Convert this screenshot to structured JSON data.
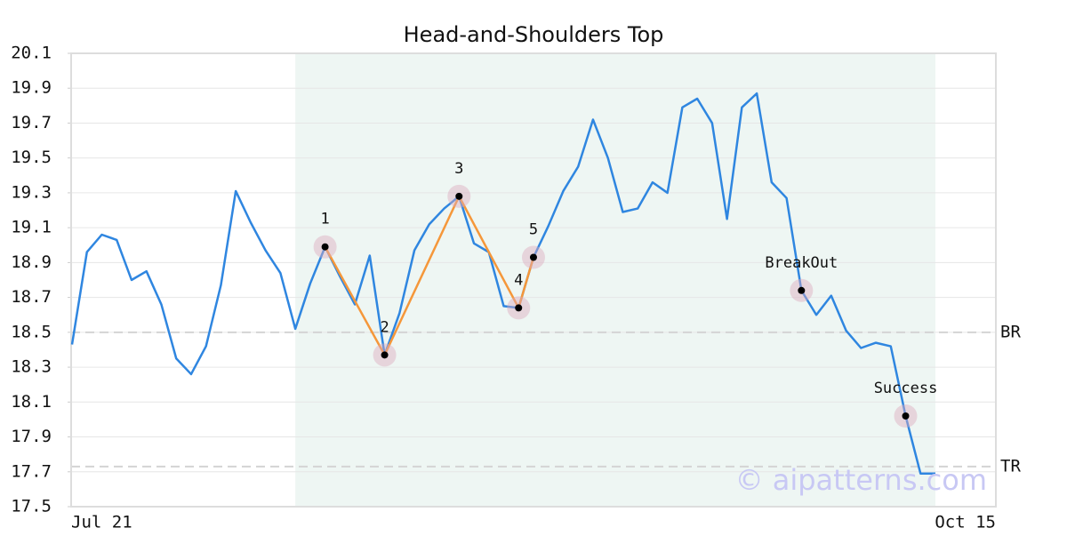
{
  "chart_data": {
    "type": "line",
    "title": "Head-and-Shoulders Top",
    "categories": [
      "Jul 21",
      null,
      null,
      null,
      null,
      null,
      null,
      null,
      null,
      null,
      null,
      null,
      null,
      null,
      null,
      null,
      null,
      null,
      null,
      null,
      null,
      null,
      null,
      null,
      null,
      null,
      null,
      null,
      null,
      null,
      null,
      null,
      null,
      null,
      null,
      null,
      null,
      null,
      null,
      null,
      null,
      null,
      null,
      null,
      null,
      null,
      null,
      null,
      null,
      null,
      null,
      null,
      null,
      null,
      null,
      null,
      null,
      null,
      "Oct 15"
    ],
    "series": [
      {
        "color": "#2f86e0",
        "values": [
          18.43,
          18.96,
          19.06,
          19.03,
          18.8,
          18.85,
          18.66,
          18.35,
          18.26,
          18.42,
          18.77,
          19.31,
          19.13,
          18.97,
          18.84,
          18.52,
          18.78,
          18.99,
          18.82,
          18.66,
          18.94,
          18.37,
          18.61,
          18.97,
          19.12,
          19.21,
          19.28,
          19.01,
          18.96,
          18.65,
          18.64,
          18.93,
          19.11,
          19.31,
          19.45,
          19.72,
          19.5,
          19.19,
          19.21,
          19.36,
          19.3,
          19.79,
          19.84,
          19.7,
          19.15,
          19.79,
          19.87,
          19.36,
          19.27,
          18.74,
          18.6,
          18.71,
          18.51,
          18.41,
          18.44,
          18.42,
          18.02,
          17.69,
          17.69
        ]
      }
    ],
    "pattern_color": "#f5973a",
    "pattern_points": [
      {
        "label": "1",
        "x": 17,
        "value": 18.99
      },
      {
        "label": "2",
        "x": 21,
        "value": 18.37
      },
      {
        "label": "3",
        "x": 26,
        "value": 19.28
      },
      {
        "label": "4",
        "x": 30,
        "value": 18.64
      },
      {
        "label": "5",
        "x": 31,
        "value": 18.93
      }
    ],
    "event_points": [
      {
        "label": "BreakOut",
        "x": 49,
        "value": 18.74
      },
      {
        "label": "Success",
        "x": 56,
        "value": 18.02
      }
    ],
    "levels": [
      {
        "label": "BR",
        "value": 18.5
      },
      {
        "label": "TR",
        "value": 17.73
      }
    ],
    "shaded_range": [
      15,
      58
    ],
    "shade_color": "#eef6f3",
    "watermark": "© aipatterns.com",
    "ylim": [
      17.5,
      20.1
    ],
    "yticks": [
      17.5,
      17.7,
      17.9,
      18.1,
      18.3,
      18.5,
      18.7,
      18.9,
      19.1,
      19.3,
      19.5,
      19.7,
      19.9,
      20.1
    ],
    "grid": true
  }
}
